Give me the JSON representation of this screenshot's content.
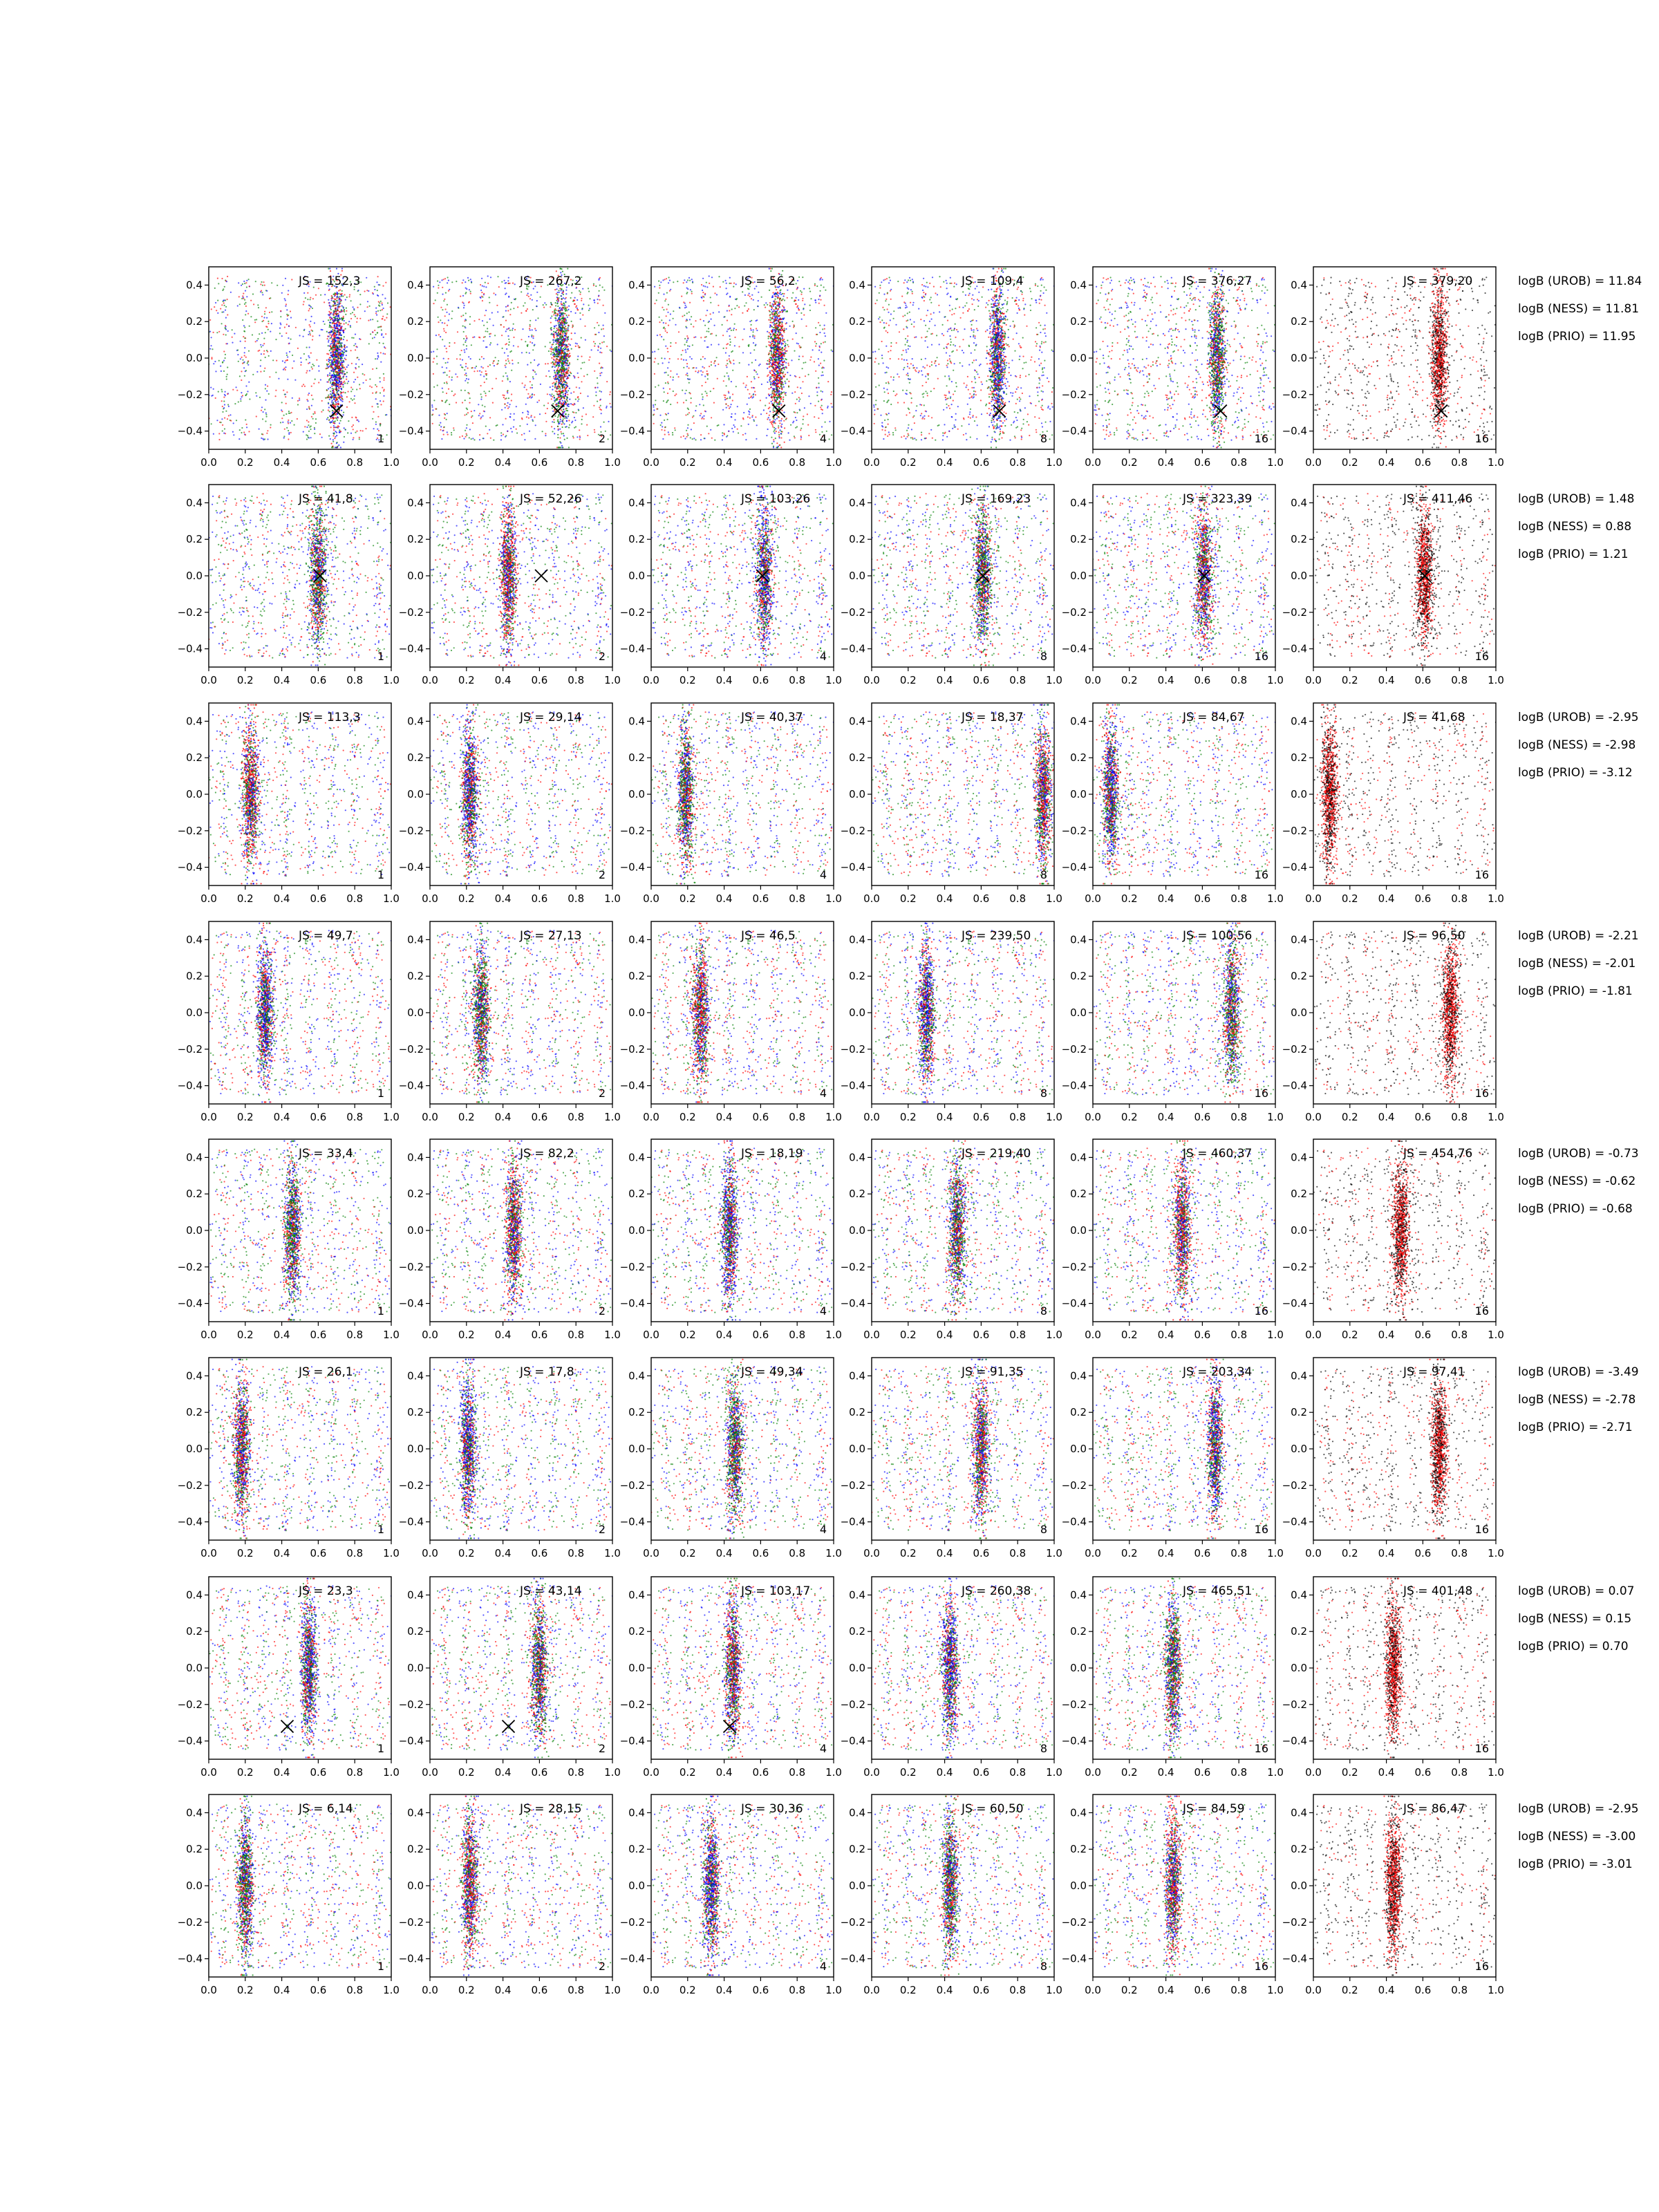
{
  "chart_data": {
    "type": "scatter",
    "layout": {
      "rows": 8,
      "cols": 6
    },
    "xlim": [
      0.0,
      1.0
    ],
    "ylim": [
      -0.5,
      0.5
    ],
    "xticks": [
      "0.0",
      "0.2",
      "0.4",
      "0.6",
      "0.8",
      "1.0"
    ],
    "yticks": [
      "0.4",
      "0.2",
      "0.0",
      "−0.2",
      "−0.4"
    ],
    "xtick_values": [
      0.0,
      0.2,
      0.4,
      0.6,
      0.8,
      1.0
    ],
    "ytick_values": [
      0.4,
      0.2,
      0.0,
      -0.2,
      -0.4
    ],
    "series_colors": {
      "blue": "#0000ff",
      "green": "#008000",
      "red": "#ff0000",
      "black": "#000000"
    },
    "grid": false,
    "rows": [
      {
        "marker": [
          0.7,
          -0.29
        ],
        "bands": [
          0.7,
          0.72,
          0.69,
          0.69,
          0.68,
          0.69
        ],
        "corner_labels": [
          "1",
          "2",
          "4",
          "8",
          "16",
          "16"
        ],
        "js_labels": [
          "JS = 152,3",
          "JS = 267,2",
          "JS = 56,2",
          "JS = 109,4",
          "JS = 376,27",
          "JS = 379,20"
        ],
        "bayes": [
          "logB (UROB) = 11.84",
          "logB (NESS) = 11.81",
          "logB (PRIO) = 11.95"
        ]
      },
      {
        "marker": [
          0.61,
          0.0
        ],
        "bands": [
          0.6,
          0.43,
          0.62,
          0.61,
          0.61,
          0.61
        ],
        "corner_labels": [
          "1",
          "2",
          "4",
          "8",
          "16",
          "16"
        ],
        "js_labels": [
          "JS = 41,8",
          "JS = 52,26",
          "JS = 103,26",
          "JS = 169,23",
          "JS = 323,39",
          "JS = 411,46"
        ],
        "bayes": [
          "logB (UROB) = 1.48",
          "logB (NESS) = 0.88",
          "logB (PRIO) = 1.21"
        ]
      },
      {
        "marker": null,
        "bands": [
          0.23,
          0.22,
          0.19,
          0.94,
          0.1,
          0.09
        ],
        "corner_labels": [
          "1",
          "2",
          "4",
          "8",
          "16",
          "16"
        ],
        "js_labels": [
          "JS = 113,3",
          "JS = 29,14",
          "JS = 40,37",
          "JS = 18,37",
          "JS = 84,67",
          "JS = 41,68"
        ],
        "bayes": [
          "logB (UROB) = -2.95",
          "logB (NESS) = -2.98",
          "logB (PRIO) = -3.12"
        ]
      },
      {
        "marker": null,
        "bands": [
          0.31,
          0.28,
          0.27,
          0.3,
          0.76,
          0.75
        ],
        "corner_labels": [
          "1",
          "2",
          "4",
          "8",
          "16",
          "16"
        ],
        "js_labels": [
          "JS = 49,7",
          "JS = 27,13",
          "JS = 46,5",
          "JS = 239,50",
          "JS = 100,56",
          "JS = 96,50"
        ],
        "bayes": [
          "logB (UROB) = -2.21",
          "logB (NESS) = -2.01",
          "logB (PRIO) = -1.81"
        ]
      },
      {
        "marker": null,
        "bands": [
          0.46,
          0.46,
          0.43,
          0.47,
          0.49,
          0.48
        ],
        "corner_labels": [
          "1",
          "2",
          "4",
          "8",
          "16",
          "16"
        ],
        "js_labels": [
          "JS = 33,4",
          "JS = 82,2",
          "JS = 18,19",
          "JS = 219,40",
          "JS = 460,37",
          "JS = 454,76"
        ],
        "bayes": [
          "logB (UROB) = -0.73",
          "logB (NESS) = -0.62",
          "logB (PRIO) = -0.68"
        ]
      },
      {
        "marker": null,
        "bands": [
          0.18,
          0.21,
          0.46,
          0.6,
          0.67,
          0.69
        ],
        "corner_labels": [
          "1",
          "2",
          "4",
          "8",
          "16",
          "16"
        ],
        "js_labels": [
          "JS = 26,1",
          "JS = 17,8",
          "JS = 49,34",
          "JS = 91,35",
          "JS = 203,34",
          "JS = 97,41"
        ],
        "bayes": [
          "logB (UROB) = -3.49",
          "logB (NESS) = -2.78",
          "logB (PRIO) = -2.71"
        ]
      },
      {
        "marker": [
          0.43,
          -0.32
        ],
        "bands": [
          0.55,
          0.6,
          0.45,
          0.43,
          0.44,
          0.44
        ],
        "corner_labels": [
          "1",
          "2",
          "4",
          "8",
          "16",
          "16"
        ],
        "js_labels": [
          "JS = 23,3",
          "JS = 43,14",
          "JS = 103,17",
          "JS = 260,38",
          "JS = 465,51",
          "JS = 401,48"
        ],
        "bayes": [
          "logB (UROB) = 0.07",
          "logB (NESS) = 0.15",
          "logB (PRIO) = 0.70"
        ]
      },
      {
        "marker": null,
        "bands": [
          0.2,
          0.22,
          0.33,
          0.43,
          0.44,
          0.44
        ],
        "corner_labels": [
          "1",
          "2",
          "4",
          "8",
          "16",
          "16"
        ],
        "js_labels": [
          "JS = 6,14",
          "JS = 28,15",
          "JS = 30,36",
          "JS = 60,50",
          "JS = 84,59",
          "JS = 86,47"
        ],
        "bayes": [
          "logB (UROB) = -2.95",
          "logB (NESS) = -3.00",
          "logB (PRIO) = -3.01"
        ]
      }
    ]
  }
}
